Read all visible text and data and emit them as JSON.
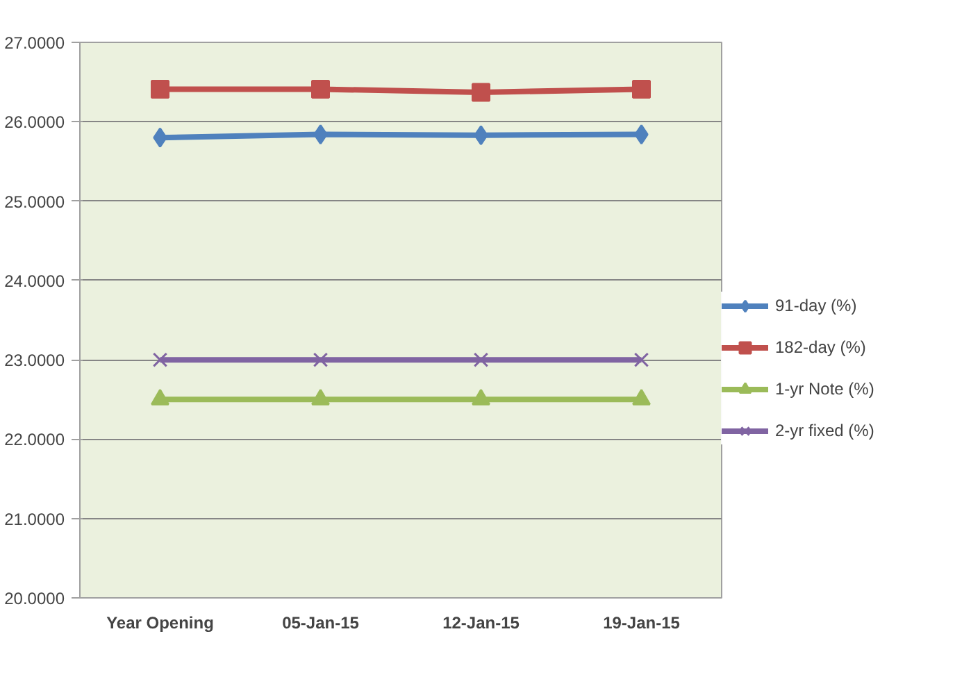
{
  "chart_data": {
    "type": "line",
    "categories": [
      "Year Opening",
      "05-Jan-15",
      "12-Jan-15",
      "19-Jan-15"
    ],
    "series": [
      {
        "name": "91-day (%)",
        "color": "#4f81bd",
        "marker": "diamond",
        "values": [
          25.8,
          25.84,
          25.83,
          25.84
        ]
      },
      {
        "name": "182-day (%)",
        "color": "#c0504d",
        "marker": "square",
        "values": [
          26.41,
          26.41,
          26.37,
          26.41
        ]
      },
      {
        "name": "1-yr Note (%)",
        "color": "#9bbb59",
        "marker": "triangle",
        "values": [
          22.5,
          22.5,
          22.5,
          22.5
        ]
      },
      {
        "name": "2-yr fixed (%)",
        "color": "#8064a2",
        "marker": "cross",
        "values": [
          23.0,
          23.0,
          23.0,
          23.0
        ]
      }
    ],
    "ylim": [
      20,
      27
    ],
    "yticks": [
      {
        "value": 20,
        "label": "20.0000"
      },
      {
        "value": 21,
        "label": "21.0000"
      },
      {
        "value": 22,
        "label": "22.0000"
      },
      {
        "value": 23,
        "label": "23.0000"
      },
      {
        "value": 24,
        "label": "24.0000"
      },
      {
        "value": 25,
        "label": "25.0000"
      },
      {
        "value": 26,
        "label": "26.0000"
      },
      {
        "value": 27,
        "label": "27.0000"
      }
    ],
    "grid": "y",
    "legend": "right"
  }
}
